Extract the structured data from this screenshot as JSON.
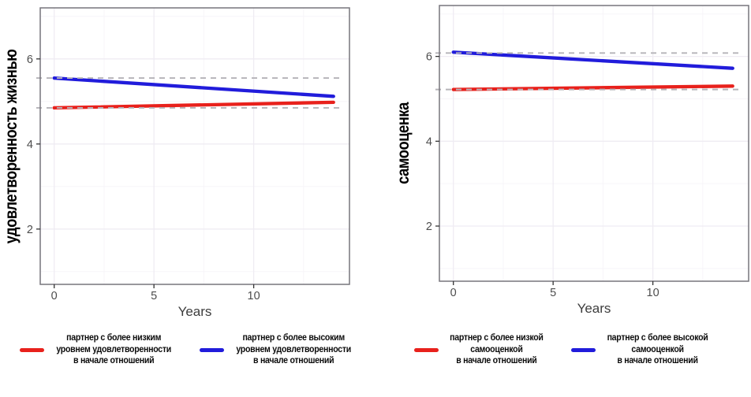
{
  "colors": {
    "red": "#e8211c",
    "blue": "#211cdb",
    "dashed_reference": "#b5b3b8",
    "grid_major": "#efecf3",
    "grid_minor": "#f7f5f9",
    "panel_border": "#77757c",
    "tick": "#333333",
    "axis_text": "#4d4d4d",
    "axis_title": "#3d3d3d",
    "y_title": "#000000"
  },
  "chart_data": [
    {
      "type": "line",
      "title": "",
      "xlabel": "Years",
      "ylabel": "удовлетворенность жизнью",
      "x_ticks": [
        0,
        5,
        10
      ],
      "y_ticks": [
        2,
        4,
        6
      ],
      "x_minor": [
        2.5,
        7.5,
        12.5
      ],
      "y_minor": [
        1,
        3,
        5,
        7
      ],
      "xlim": [
        -0.7,
        14.8
      ],
      "ylim": [
        0.7,
        7.2
      ],
      "grid": "on",
      "legend_position": "bottom",
      "series": [
        {
          "name": "партнер с более низким уровнем удовлетворенности в начале отношений",
          "color": "red",
          "x": [
            0,
            14
          ],
          "y": [
            4.85,
            4.98
          ]
        },
        {
          "name": "партнер с более высоким уровнем удовлетворенности в начале отношений",
          "color": "blue",
          "x": [
            0,
            14
          ],
          "y": [
            5.55,
            5.12
          ]
        }
      ],
      "reference_lines": [
        {
          "y": 5.55,
          "style": "dashed"
        },
        {
          "y": 4.85,
          "style": "dashed"
        }
      ],
      "legend": [
        {
          "color": "red",
          "lines": [
            "партнер с более низким",
            "уровнем удовлетворенности",
            "в начале отношений"
          ]
        },
        {
          "color": "blue",
          "lines": [
            "партнер с более высоким",
            "уровнем удовлетворенности",
            "в начале отношений"
          ]
        }
      ]
    },
    {
      "type": "line",
      "title": "",
      "xlabel": "Years",
      "ylabel": "самооценка",
      "x_ticks": [
        0,
        5,
        10
      ],
      "y_ticks": [
        2,
        4,
        6
      ],
      "x_minor": [
        2.5,
        7.5,
        12.5
      ],
      "y_minor": [
        1,
        3,
        5,
        7
      ],
      "xlim": [
        -0.7,
        14.8
      ],
      "ylim": [
        0.7,
        7.2
      ],
      "grid": "on",
      "legend_position": "bottom",
      "series": [
        {
          "name": "партнер с более низкой самооценкой в начале отношений",
          "color": "red",
          "x": [
            0,
            14
          ],
          "y": [
            5.22,
            5.3
          ]
        },
        {
          "name": "партнер с более высокой самооценкой в начале отношений",
          "color": "blue",
          "x": [
            0,
            14
          ],
          "y": [
            6.1,
            5.72
          ]
        }
      ],
      "reference_lines": [
        {
          "y": 6.08,
          "style": "dashed"
        },
        {
          "y": 5.22,
          "style": "dashed"
        }
      ],
      "legend": [
        {
          "color": "red",
          "lines": [
            "партнер с более низкой",
            "самооценкой",
            "в начале отношений"
          ]
        },
        {
          "color": "blue",
          "lines": [
            "партнер с более высокой",
            "самооценкой",
            "в начале отношений"
          ]
        }
      ]
    }
  ]
}
